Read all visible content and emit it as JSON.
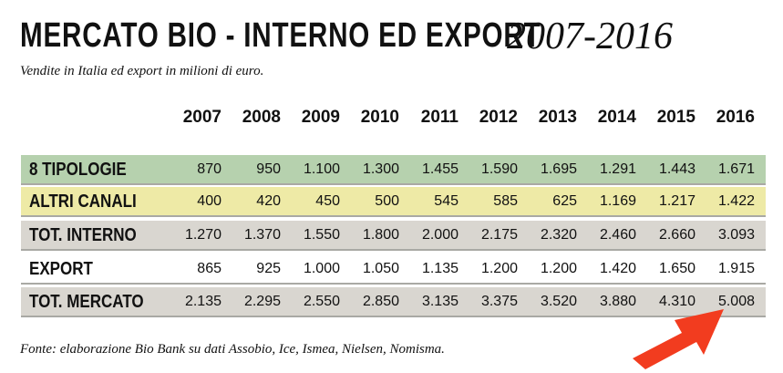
{
  "header": {
    "title": "MERCATO BIO - INTERNO ED EXPORT",
    "years": "2007-2016",
    "subtitle": "Vendite in Italia ed export in milioni di euro."
  },
  "source": "Fonte: elaborazione Bio Bank su dati Assobio, Ice, Ismea, Nielsen, Nomisma.",
  "colors": {
    "row_tipologie": "#b6d1ae",
    "row_altri": "#eeeaa6",
    "row_totals": "#d9d6d0",
    "arrow": "#f23c1f"
  },
  "chart_data": {
    "type": "table",
    "columns": [
      "2007",
      "2008",
      "2009",
      "2010",
      "2011",
      "2012",
      "2013",
      "2014",
      "2015",
      "2016"
    ],
    "rows": [
      {
        "label": "8 TIPOLOGIE",
        "values": [
          "870",
          "950",
          "1.100",
          "1.300",
          "1.455",
          "1.590",
          "1.695",
          "1.291",
          "1.443",
          "1.671"
        ]
      },
      {
        "label": "ALTRI CANALI",
        "values": [
          "400",
          "420",
          "450",
          "500",
          "545",
          "585",
          "625",
          "1.169",
          "1.217",
          "1.422"
        ]
      },
      {
        "label": "TOT. INTERNO",
        "values": [
          "1.270",
          "1.370",
          "1.550",
          "1.800",
          "2.000",
          "2.175",
          "2.320",
          "2.460",
          "2.660",
          "3.093"
        ]
      },
      {
        "label": "EXPORT",
        "values": [
          "865",
          "925",
          "1.000",
          "1.050",
          "1.135",
          "1.200",
          "1.200",
          "1.420",
          "1.650",
          "1.915"
        ]
      },
      {
        "label": "TOT. MERCATO",
        "values": [
          "2.135",
          "2.295",
          "2.550",
          "2.850",
          "3.135",
          "3.375",
          "3.520",
          "3.880",
          "4.310",
          "5.008"
        ]
      }
    ]
  }
}
